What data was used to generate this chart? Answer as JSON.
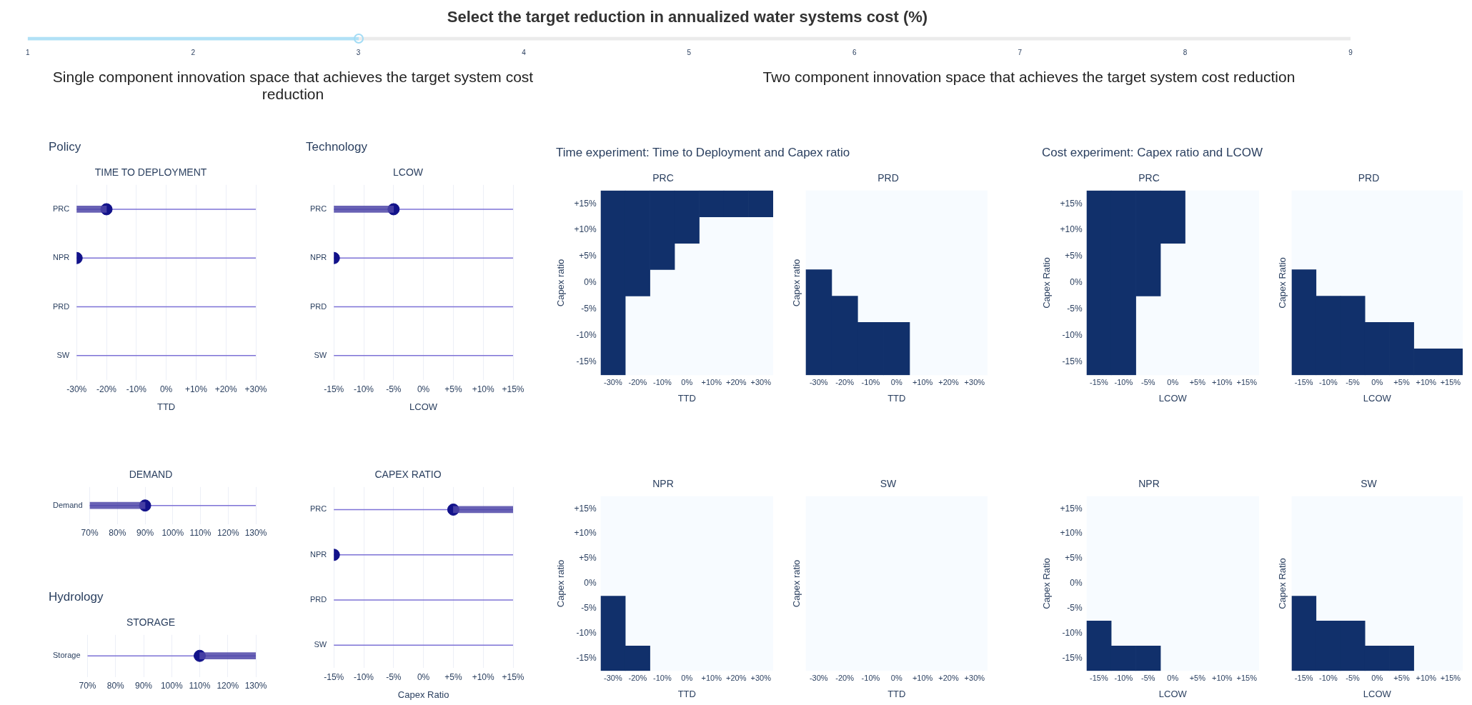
{
  "chart_data": [
    {
      "type": "bar",
      "orientation": "horizontal",
      "title": "Select the target reduction in annualized water systems cost (%)",
      "annotations": [
        "Single component innovation space that achieves the target system cost reduction",
        "Two component innovation space that achieves the target system cost reduction"
      ],
      "categories": [
        null
      ],
      "series": [
        {
          "type": "bar",
          "color": "#a3dcf5",
          "base": [
            1
          ],
          "values": [
            2
          ]
        },
        {
          "type": "bar",
          "color": "#e8e8e8",
          "base": [
            3
          ],
          "values": [
            6
          ]
        }
      ],
      "xlim": [
        1,
        9
      ],
      "xticks": [
        1,
        2,
        3,
        4,
        5,
        6,
        7,
        8,
        9
      ],
      "tick_labels": "x"
    },
    {
      "type": "bar",
      "orientation": "horizontal",
      "title": "TIME TO DEPLOYMENT",
      "xlabel": "TTD",
      "annotations": [
        "Policy"
      ],
      "categories": [
        "PRC",
        "NPR",
        "PRD",
        "SW"
      ],
      "series": [
        {
          "type": "bar",
          "color": "#4f46a8",
          "base": [
            -30,
            null,
            null,
            null
          ],
          "values": [
            10,
            null,
            null,
            null
          ]
        },
        {
          "type": "scatter",
          "color": "#12128a",
          "values": [
            -20,
            -30,
            null,
            null
          ]
        }
      ],
      "xlim": [
        -30,
        30
      ],
      "xticks": [
        {
          "value": -30,
          "label": "-30%"
        },
        {
          "value": -20,
          "label": "-20%"
        },
        {
          "value": -10,
          "label": "-10%"
        },
        {
          "value": 0,
          "label": "0%"
        },
        {
          "value": 10,
          "label": "+10%"
        },
        {
          "value": 20,
          "label": "+20%"
        },
        {
          "value": 30,
          "label": "+30%"
        }
      ],
      "grid": "x",
      "marker": "circle",
      "ref_lines": [
        {
          "axis": "y",
          "value": "PRC",
          "color": "#7d72d6"
        },
        {
          "axis": "y",
          "value": "NPR",
          "color": "#7d72d6"
        },
        {
          "axis": "y",
          "value": "PRD",
          "color": "#7d72d6"
        },
        {
          "axis": "y",
          "value": "SW",
          "color": "#7d72d6"
        }
      ]
    },
    {
      "type": "bar",
      "orientation": "horizontal",
      "title": "LCOW",
      "xlabel": "LCOW",
      "annotations": [
        "Technology"
      ],
      "categories": [
        "PRC",
        "NPR",
        "PRD",
        "SW"
      ],
      "series": [
        {
          "type": "bar",
          "color": "#4f46a8",
          "base": [
            -15,
            null,
            null,
            null
          ],
          "values": [
            10,
            null,
            null,
            null
          ]
        },
        {
          "type": "scatter",
          "color": "#12128a",
          "values": [
            -5,
            -15,
            null,
            null
          ]
        }
      ],
      "xlim": [
        -15,
        15
      ],
      "xticks": [
        {
          "value": -15,
          "label": "-15%"
        },
        {
          "value": -10,
          "label": "-10%"
        },
        {
          "value": -5,
          "label": "-5%"
        },
        {
          "value": 0,
          "label": "0%"
        },
        {
          "value": 5,
          "label": "+5%"
        },
        {
          "value": 10,
          "label": "+10%"
        },
        {
          "value": 15,
          "label": "+15%"
        }
      ],
      "grid": "x",
      "marker": "circle",
      "ref_lines": [
        {
          "axis": "y",
          "value": "PRC",
          "color": "#7d72d6"
        },
        {
          "axis": "y",
          "value": "NPR",
          "color": "#7d72d6"
        },
        {
          "axis": "y",
          "value": "PRD",
          "color": "#7d72d6"
        },
        {
          "axis": "y",
          "value": "SW",
          "color": "#7d72d6"
        }
      ]
    },
    {
      "type": "bar",
      "orientation": "horizontal",
      "title": "DEMAND",
      "categories": [
        "Demand"
      ],
      "series": [
        {
          "type": "bar",
          "color": "#4f46a8",
          "base": [
            70
          ],
          "values": [
            20
          ]
        },
        {
          "type": "scatter",
          "color": "#12128a",
          "values": [
            90
          ]
        }
      ],
      "xlim": [
        70,
        130
      ],
      "xticks": [
        {
          "value": 70,
          "label": "70%"
        },
        {
          "value": 80,
          "label": "80%"
        },
        {
          "value": 90,
          "label": "90%"
        },
        {
          "value": 100,
          "label": "100%"
        },
        {
          "value": 110,
          "label": "110%"
        },
        {
          "value": 120,
          "label": "120%"
        },
        {
          "value": 130,
          "label": "130%"
        }
      ],
      "grid": "x",
      "marker": "circle",
      "ref_lines": [
        {
          "axis": "y",
          "value": "Demand",
          "color": "#7d72d6"
        }
      ]
    },
    {
      "type": "bar",
      "orientation": "horizontal",
      "title": "CAPEX RATIO",
      "xlabel": "Capex Ratio",
      "categories": [
        "PRC",
        "NPR",
        "PRD",
        "SW"
      ],
      "series": [
        {
          "type": "bar",
          "color": "#4f46a8",
          "base": [
            5,
            null,
            null,
            null
          ],
          "values": [
            10,
            null,
            null,
            null
          ]
        },
        {
          "type": "scatter",
          "color": "#12128a",
          "values": [
            5,
            -15,
            null,
            null
          ]
        }
      ],
      "xlim": [
        -15,
        15
      ],
      "xticks": [
        {
          "value": -15,
          "label": "-15%"
        },
        {
          "value": -10,
          "label": "-10%"
        },
        {
          "value": -5,
          "label": "-5%"
        },
        {
          "value": 0,
          "label": "0%"
        },
        {
          "value": 5,
          "label": "+5%"
        },
        {
          "value": 10,
          "label": "+10%"
        },
        {
          "value": 15,
          "label": "+15%"
        }
      ],
      "grid": "x",
      "marker": "circle",
      "ref_lines": [
        {
          "axis": "y",
          "value": "PRC",
          "color": "#7d72d6"
        },
        {
          "axis": "y",
          "value": "NPR",
          "color": "#7d72d6"
        },
        {
          "axis": "y",
          "value": "PRD",
          "color": "#7d72d6"
        },
        {
          "axis": "y",
          "value": "SW",
          "color": "#7d72d6"
        }
      ]
    },
    {
      "type": "bar",
      "orientation": "horizontal",
      "title": "STORAGE",
      "annotations": [
        "Hydrology"
      ],
      "categories": [
        "Storage"
      ],
      "series": [
        {
          "type": "bar",
          "color": "#4f46a8",
          "base": [
            110
          ],
          "values": [
            20
          ]
        },
        {
          "type": "scatter",
          "color": "#12128a",
          "values": [
            110
          ]
        }
      ],
      "xlim": [
        70,
        130
      ],
      "xticks": [
        {
          "value": 70,
          "label": "70%"
        },
        {
          "value": 80,
          "label": "80%"
        },
        {
          "value": 90,
          "label": "90%"
        },
        {
          "value": 100,
          "label": "100%"
        },
        {
          "value": 110,
          "label": "110%"
        },
        {
          "value": 120,
          "label": "120%"
        },
        {
          "value": 130,
          "label": "130%"
        }
      ],
      "grid": "x",
      "marker": "circle",
      "ref_lines": [
        {
          "axis": "y",
          "value": "Storage",
          "color": "#7d72d6"
        }
      ]
    },
    {
      "type": "bar",
      "title": "PRC",
      "xlabel": "TTD",
      "ylabel": "Capex ratio",
      "annotations": [
        "Time experiment: Time to Deployment and Capex ratio"
      ],
      "categories": [
        "-30%",
        "-20%",
        "-10%",
        "0%",
        "+10%",
        "+20%",
        "+30%"
      ],
      "series": [
        {
          "color": "#11306b",
          "base": [
            -17.5,
            -2.5,
            2.5,
            7.5,
            12.5,
            12.5,
            12.5
          ],
          "values": [
            35,
            20,
            15,
            10,
            5,
            5,
            5
          ]
        }
      ],
      "ylim": [
        -17.5,
        17.5
      ],
      "yticks": [
        {
          "value": -15,
          "label": "-15%"
        },
        {
          "value": -10,
          "label": "-10%"
        },
        {
          "value": -5,
          "label": "-5%"
        },
        {
          "value": 0,
          "label": "0%"
        },
        {
          "value": 5,
          "label": "+5%"
        },
        {
          "value": 10,
          "label": "+10%"
        },
        {
          "value": 15,
          "label": "+15%"
        }
      ]
    },
    {
      "type": "bar",
      "title": "PRD",
      "xlabel": "TTD",
      "ylabel": "Capex ratio",
      "tick_labels": "x",
      "categories": [
        "-30%",
        "-20%",
        "-10%",
        "0%",
        "+10%",
        "+20%",
        "+30%"
      ],
      "series": [
        {
          "color": "#11306b",
          "base": [
            -17.5,
            -17.5,
            -17.5,
            -17.5,
            null,
            null,
            null
          ],
          "values": [
            20,
            15,
            10,
            10,
            null,
            null,
            null
          ]
        }
      ],
      "ylim": [
        -17.5,
        17.5
      ]
    },
    {
      "type": "bar",
      "title": "PRC",
      "xlabel": "LCOW",
      "ylabel": "Capex Ratio",
      "annotations": [
        "Cost experiment: Capex ratio and LCOW"
      ],
      "categories": [
        "-15%",
        "-10%",
        "-5%",
        "0%",
        "+5%",
        "+10%",
        "+15%"
      ],
      "series": [
        {
          "color": "#11306b",
          "base": [
            -17.5,
            -17.5,
            -2.5,
            7.5,
            null,
            null,
            null
          ],
          "values": [
            35,
            35,
            20,
            10,
            null,
            null,
            null
          ]
        }
      ],
      "ylim": [
        -17.5,
        17.5
      ],
      "yticks": [
        {
          "value": -15,
          "label": "-15%"
        },
        {
          "value": -10,
          "label": "-10%"
        },
        {
          "value": -5,
          "label": "-5%"
        },
        {
          "value": 0,
          "label": "0%"
        },
        {
          "value": 5,
          "label": "+5%"
        },
        {
          "value": 10,
          "label": "+10%"
        },
        {
          "value": 15,
          "label": "+15%"
        }
      ]
    },
    {
      "type": "bar",
      "title": "PRD",
      "xlabel": "LCOW",
      "ylabel": "Capex Ratio",
      "tick_labels": "x",
      "categories": [
        "-15%",
        "-10%",
        "-5%",
        "0%",
        "+5%",
        "+10%",
        "+15%"
      ],
      "series": [
        {
          "color": "#11306b",
          "base": [
            -17.5,
            -17.5,
            -17.5,
            -17.5,
            -17.5,
            -17.5,
            -17.5
          ],
          "values": [
            20,
            15,
            15,
            10,
            10,
            5,
            5
          ]
        }
      ],
      "ylim": [
        -17.5,
        17.5
      ]
    },
    {
      "type": "bar",
      "title": "NPR",
      "xlabel": "TTD",
      "ylabel": "Capex ratio",
      "categories": [
        "-30%",
        "-20%",
        "-10%",
        "0%",
        "+10%",
        "+20%",
        "+30%"
      ],
      "series": [
        {
          "color": "#11306b",
          "base": [
            -17.5,
            -17.5,
            null,
            null,
            null,
            null,
            null
          ],
          "values": [
            15,
            5,
            null,
            null,
            null,
            null,
            null
          ]
        }
      ],
      "ylim": [
        -17.5,
        17.5
      ],
      "yticks": [
        {
          "value": -15,
          "label": "-15%"
        },
        {
          "value": -10,
          "label": "-10%"
        },
        {
          "value": -5,
          "label": "-5%"
        },
        {
          "value": 0,
          "label": "0%"
        },
        {
          "value": 5,
          "label": "+5%"
        },
        {
          "value": 10,
          "label": "+10%"
        },
        {
          "value": 15,
          "label": "+15%"
        }
      ]
    },
    {
      "type": "bar",
      "title": "SW",
      "xlabel": "TTD",
      "ylabel": "Capex ratio",
      "tick_labels": "x",
      "categories": [
        "-30%",
        "-20%",
        "-10%",
        "0%",
        "+10%",
        "+20%",
        "+30%"
      ],
      "series": [
        {
          "color": "#11306b",
          "base": [
            null,
            null,
            null,
            null,
            null,
            null,
            null
          ],
          "values": [
            null,
            null,
            null,
            null,
            null,
            null,
            null
          ]
        }
      ],
      "ylim": [
        -17.5,
        17.5
      ]
    },
    {
      "type": "bar",
      "title": "NPR",
      "xlabel": "LCOW",
      "ylabel": "Capex Ratio",
      "categories": [
        "-15%",
        "-10%",
        "-5%",
        "0%",
        "+5%",
        "+10%",
        "+15%"
      ],
      "series": [
        {
          "color": "#11306b",
          "base": [
            -17.5,
            -17.5,
            -17.5,
            null,
            null,
            null,
            null
          ],
          "values": [
            10,
            5,
            5,
            null,
            null,
            null,
            null
          ]
        }
      ],
      "ylim": [
        -17.5,
        17.5
      ],
      "yticks": [
        {
          "value": -15,
          "label": "-15%"
        },
        {
          "value": -10,
          "label": "-10%"
        },
        {
          "value": -5,
          "label": "-5%"
        },
        {
          "value": 0,
          "label": "0%"
        },
        {
          "value": 5,
          "label": "+5%"
        },
        {
          "value": 10,
          "label": "+10%"
        },
        {
          "value": 15,
          "label": "+15%"
        }
      ]
    },
    {
      "type": "bar",
      "title": "SW",
      "xlabel": "LCOW",
      "ylabel": "Capex Ratio",
      "tick_labels": "x",
      "categories": [
        "-15%",
        "-10%",
        "-5%",
        "0%",
        "+5%",
        "+10%",
        "+15%"
      ],
      "series": [
        {
          "color": "#11306b",
          "base": [
            -17.5,
            -17.5,
            -17.5,
            -17.5,
            -17.5,
            null,
            null
          ],
          "values": [
            15,
            10,
            10,
            5,
            5,
            null,
            null
          ]
        }
      ],
      "ylim": [
        -17.5,
        17.5
      ]
    }
  ]
}
